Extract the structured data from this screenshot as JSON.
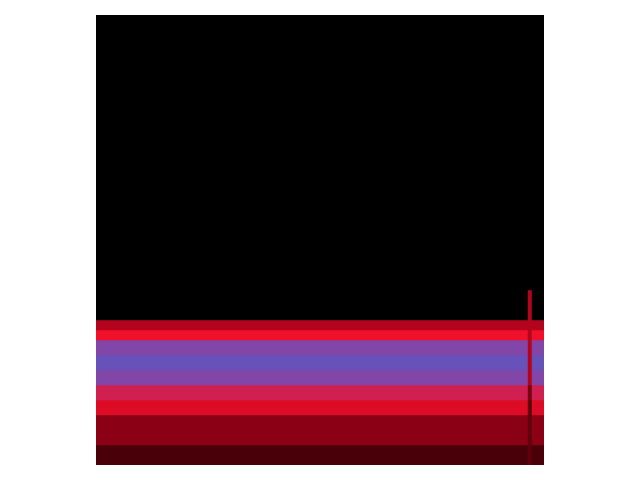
{
  "chart_data": {
    "type": "spectrogram",
    "tick_labels": false,
    "xlim": [
      0,
      448
    ],
    "ylim": [
      0,
      450
    ],
    "zlim": [
      0,
      1
    ],
    "x": [
      0,
      432,
      436,
      448
    ],
    "y": [
      0,
      20,
      50,
      65,
      80,
      95,
      110,
      125,
      135,
      145,
      175,
      450
    ],
    "cells": [
      [
        0.25,
        0.3,
        0.25
      ],
      [
        0.4,
        0.3,
        0.4
      ],
      [
        0.6,
        0.3,
        0.6
      ],
      [
        0.7,
        0.35,
        0.7
      ],
      [
        0.85,
        0.5,
        0.85
      ],
      [
        0.95,
        0.5,
        0.95
      ],
      [
        0.85,
        0.5,
        0.85
      ],
      [
        0.65,
        0.5,
        0.65
      ],
      [
        0.5,
        0.5,
        0.5
      ],
      [
        0,
        0.5,
        0
      ],
      [
        0,
        0,
        0
      ]
    ]
  }
}
